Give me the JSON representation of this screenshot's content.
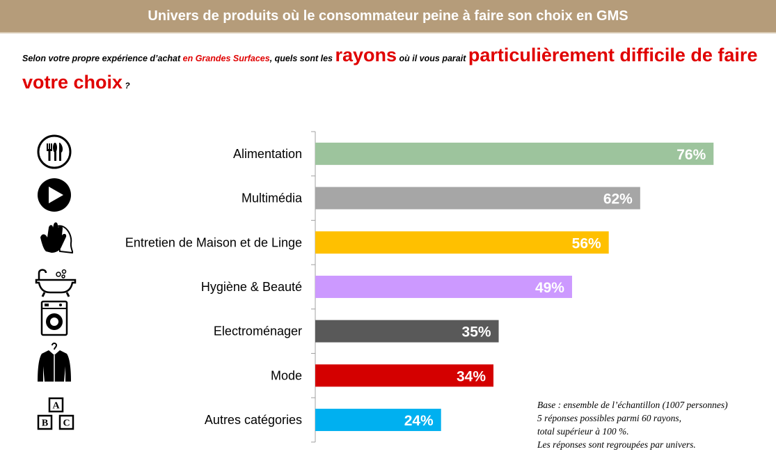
{
  "header": {
    "title": "Univers de produits où le consommateur peine à faire son choix en GMS"
  },
  "question": {
    "part1": "Selon votre propre expérience d’achat ",
    "part2": "en Grandes Surfaces",
    "part3": ", quels sont les ",
    "part4": "rayons",
    "part5": " où il vous parait ",
    "part6": "particulièrement difficile de faire votre choix",
    "part7": " ?"
  },
  "chart_data": {
    "type": "bar",
    "orientation": "horizontal",
    "title": "",
    "xlabel": "",
    "ylabel": "",
    "xlim": [
      0,
      100
    ],
    "grid": false,
    "categories": [
      "Alimentation",
      "Multimédia",
      "Entretien de Maison et de Linge",
      "Hygiène & Beauté",
      "Electroménager",
      "Mode",
      "Autres catégories"
    ],
    "values": [
      76,
      62,
      56,
      49,
      35,
      34,
      24
    ],
    "value_labels": [
      "76%",
      "62%",
      "56%",
      "49%",
      "35%",
      "34%",
      "24%"
    ],
    "colors": [
      "#9dc49d",
      "#a6a6a6",
      "#ffc000",
      "#cc99ff",
      "#595959",
      "#d40000",
      "#00b0f0"
    ],
    "icons": [
      "cutlery-icon",
      "play-icon",
      "glove-icon",
      "bathtub-icon",
      "washing-machine-icon",
      "shirt-icon",
      "abc-blocks-icon"
    ]
  },
  "notes": [
    "Base : ensemble de l’échantillon (1007 personnes)",
    "5 réponses possibles parmi 60 rayons,",
    "total supérieur à 100 %.",
    "Les réponses sont regroupées par univers."
  ]
}
